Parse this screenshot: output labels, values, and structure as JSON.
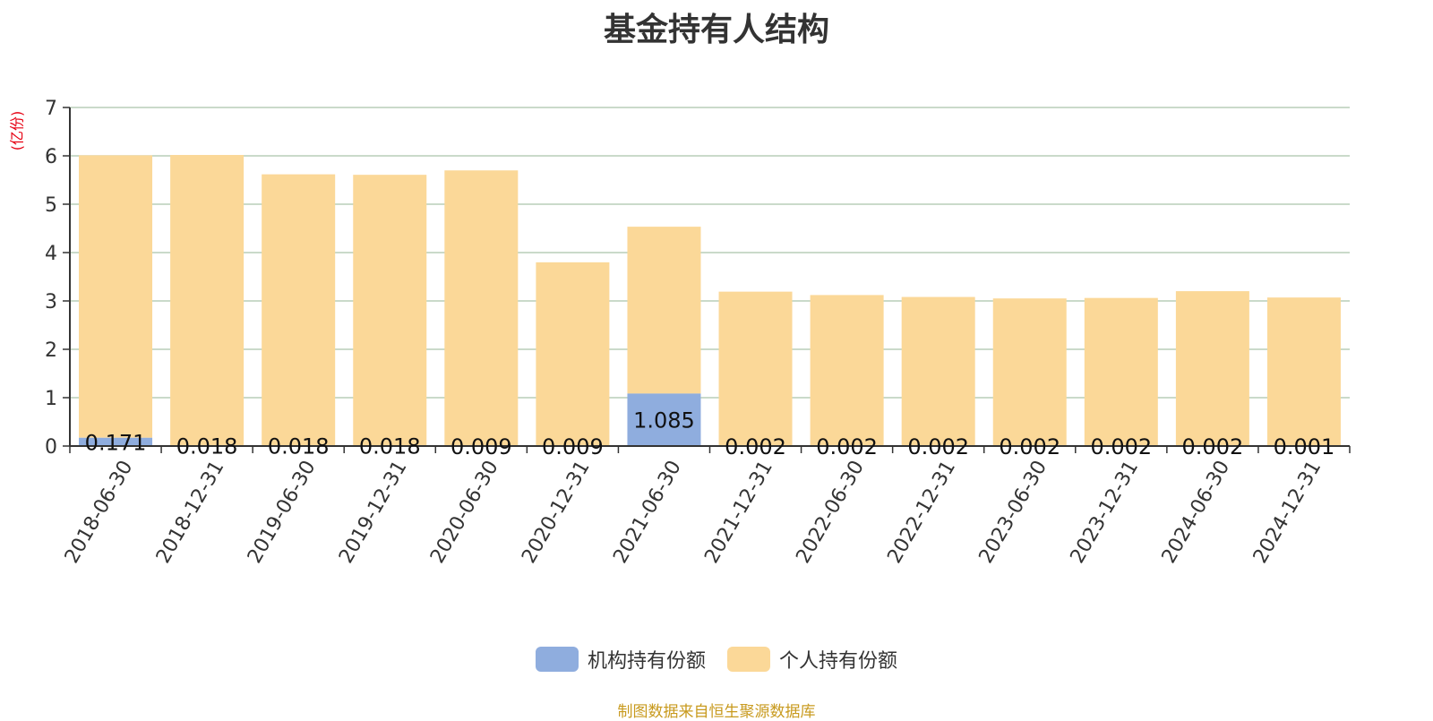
{
  "chart_data": {
    "type": "bar",
    "stacked": true,
    "title": "基金持有人结构",
    "unit_label": "(亿份)",
    "categories": [
      "2018-06-30",
      "2018-12-31",
      "2019-06-30",
      "2019-12-31",
      "2020-06-30",
      "2020-12-31",
      "2021-06-30",
      "2021-12-31",
      "2022-06-30",
      "2022-12-31",
      "2023-06-30",
      "2023-12-31",
      "2024-06-30",
      "2024-12-31"
    ],
    "series": [
      {
        "name": "机构持有份额",
        "color": "#8fadde",
        "values": [
          0.171,
          0.018,
          0.018,
          0.018,
          0.009,
          0.009,
          1.085,
          0.002,
          0.002,
          0.002,
          0.002,
          0.002,
          0.002,
          0.001
        ],
        "labels": [
          "0.171",
          "0.018",
          "0.018",
          "0.018",
          "0.009",
          "0.009",
          "1.085",
          "0.002",
          "0.002",
          "0.002",
          "0.002",
          "0.002",
          "0.002",
          "0.001"
        ]
      },
      {
        "name": "个人持有份额",
        "color": "#fbd898",
        "values": [
          5.84,
          6.0,
          5.6,
          5.59,
          5.69,
          3.79,
          3.45,
          3.19,
          3.12,
          3.08,
          3.05,
          3.06,
          3.2,
          3.07
        ]
      }
    ],
    "ylim": [
      0,
      7
    ],
    "yticks": [
      0,
      1,
      2,
      3,
      4,
      5,
      6,
      7
    ],
    "grid": true,
    "legend_position": "bottom"
  },
  "source_note": "制图数据来自恒生聚源数据库"
}
